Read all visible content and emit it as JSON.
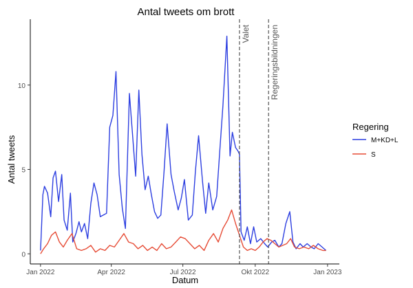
{
  "chart_data": {
    "type": "line",
    "title": "Antal tweets om brott",
    "xlabel": "Datum",
    "ylabel": "Antal tweets",
    "x_tick_labels": [
      "Jan 2022",
      "Apr 2022",
      "Jul 2022",
      "Okt 2022",
      "Jan 2023"
    ],
    "x_tick_dates": [
      "2022-01-01",
      "2022-04-01",
      "2022-07-01",
      "2022-10-01",
      "2023-01-01"
    ],
    "y_ticks": [
      0,
      5,
      10
    ],
    "xlim": [
      "2021-12-19",
      "2023-01-16"
    ],
    "ylim": [
      -0.6,
      13.9
    ],
    "grid": false,
    "legend": {
      "title": "Regering",
      "placement": "right"
    },
    "vlines": [
      {
        "x": "2022-09-11",
        "label": "Valet"
      },
      {
        "x": "2022-10-18",
        "label": "Regeringsbildningen"
      }
    ],
    "series": [
      {
        "name": "M+KD+L",
        "color": "#2c3ee0",
        "x": [
          "2022-01-01",
          "2022-01-04",
          "2022-01-06",
          "2022-01-10",
          "2022-01-14",
          "2022-01-17",
          "2022-01-20",
          "2022-01-24",
          "2022-01-28",
          "2022-01-31",
          "2022-02-04",
          "2022-02-08",
          "2022-02-11",
          "2022-02-15",
          "2022-02-19",
          "2022-02-22",
          "2022-02-26",
          "2022-03-02",
          "2022-03-06",
          "2022-03-10",
          "2022-03-14",
          "2022-03-18",
          "2022-03-22",
          "2022-03-26",
          "2022-03-30",
          "2022-04-03",
          "2022-04-07",
          "2022-04-11",
          "2022-04-15",
          "2022-04-19",
          "2022-04-24",
          "2022-04-28",
          "2022-05-02",
          "2022-05-06",
          "2022-05-10",
          "2022-05-14",
          "2022-05-18",
          "2022-05-22",
          "2022-05-26",
          "2022-05-30",
          "2022-06-03",
          "2022-06-07",
          "2022-06-11",
          "2022-06-16",
          "2022-06-20",
          "2022-06-25",
          "2022-06-29",
          "2022-07-03",
          "2022-07-08",
          "2022-07-13",
          "2022-07-17",
          "2022-07-21",
          "2022-07-26",
          "2022-07-30",
          "2022-08-03",
          "2022-08-08",
          "2022-08-13",
          "2022-08-17",
          "2022-08-21",
          "2022-08-26",
          "2022-08-30",
          "2022-09-02",
          "2022-09-06",
          "2022-09-09",
          "2022-09-11",
          "2022-09-13",
          "2022-09-17",
          "2022-09-21",
          "2022-09-25",
          "2022-09-29",
          "2022-10-03",
          "2022-10-08",
          "2022-10-13",
          "2022-10-17",
          "2022-10-22",
          "2022-10-26",
          "2022-10-31",
          "2022-11-04",
          "2022-11-09",
          "2022-11-14",
          "2022-11-18",
          "2022-11-22",
          "2022-11-27",
          "2022-12-01",
          "2022-12-06",
          "2022-12-11",
          "2022-12-15",
          "2022-12-20",
          "2022-12-25",
          "2022-12-30"
        ],
        "y": [
          0.2,
          3.5,
          4.0,
          3.6,
          2.2,
          4.5,
          4.9,
          3.1,
          4.7,
          2.0,
          1.4,
          3.6,
          0.7,
          1.2,
          1.9,
          1.3,
          1.8,
          0.9,
          3.0,
          4.2,
          3.5,
          2.2,
          2.3,
          2.4,
          7.5,
          8.2,
          10.8,
          4.7,
          2.7,
          1.5,
          9.5,
          7.1,
          4.6,
          9.7,
          5.9,
          3.8,
          4.6,
          3.5,
          2.5,
          2.1,
          2.3,
          4.8,
          7.7,
          4.7,
          3.7,
          2.6,
          3.3,
          4.4,
          2.0,
          2.3,
          4.9,
          7.0,
          4.3,
          2.4,
          4.2,
          2.6,
          3.4,
          6.1,
          8.8,
          12.9,
          5.8,
          7.2,
          6.3,
          6.1,
          5.9,
          1.3,
          0.8,
          1.6,
          0.6,
          1.6,
          0.7,
          0.9,
          0.6,
          0.4,
          0.7,
          0.8,
          0.4,
          0.6,
          1.8,
          2.5,
          0.7,
          0.3,
          0.6,
          0.4,
          0.6,
          0.4,
          0.3,
          0.6,
          0.4,
          0.2
        ]
      },
      {
        "name": "S",
        "color": "#e64b35",
        "x": [
          "2022-01-01",
          "2022-01-05",
          "2022-01-10",
          "2022-01-15",
          "2022-01-20",
          "2022-01-25",
          "2022-01-30",
          "2022-02-04",
          "2022-02-10",
          "2022-02-16",
          "2022-02-22",
          "2022-02-28",
          "2022-03-06",
          "2022-03-12",
          "2022-03-18",
          "2022-03-24",
          "2022-03-30",
          "2022-04-05",
          "2022-04-11",
          "2022-04-17",
          "2022-04-23",
          "2022-04-29",
          "2022-05-05",
          "2022-05-11",
          "2022-05-17",
          "2022-05-23",
          "2022-05-29",
          "2022-06-04",
          "2022-06-10",
          "2022-06-16",
          "2022-06-22",
          "2022-06-28",
          "2022-07-04",
          "2022-07-10",
          "2022-07-16",
          "2022-07-22",
          "2022-07-28",
          "2022-08-03",
          "2022-08-09",
          "2022-08-15",
          "2022-08-21",
          "2022-08-27",
          "2022-09-01",
          "2022-09-06",
          "2022-09-11",
          "2022-09-16",
          "2022-09-21",
          "2022-09-26",
          "2022-10-01",
          "2022-10-06",
          "2022-10-11",
          "2022-10-16",
          "2022-10-21",
          "2022-10-26",
          "2022-10-31",
          "2022-11-05",
          "2022-11-10",
          "2022-11-15",
          "2022-11-20",
          "2022-11-26",
          "2022-12-02",
          "2022-12-08",
          "2022-12-14",
          "2022-12-20",
          "2022-12-26",
          "2022-12-30"
        ],
        "y": [
          0.0,
          0.3,
          0.6,
          1.1,
          1.3,
          0.7,
          0.4,
          0.8,
          1.2,
          0.3,
          0.2,
          0.3,
          0.5,
          0.1,
          0.3,
          0.2,
          0.5,
          0.4,
          0.8,
          1.2,
          0.7,
          0.6,
          0.3,
          0.5,
          0.2,
          0.4,
          0.2,
          0.6,
          0.3,
          0.4,
          0.7,
          1.0,
          0.9,
          0.6,
          0.3,
          0.5,
          0.2,
          0.8,
          1.2,
          0.7,
          1.5,
          2.0,
          2.6,
          1.8,
          1.1,
          0.4,
          0.2,
          0.3,
          0.2,
          0.4,
          0.7,
          0.9,
          0.8,
          0.6,
          0.4,
          0.5,
          0.6,
          0.9,
          0.4,
          0.3,
          0.4,
          0.3,
          0.5,
          0.3,
          0.2,
          0.2
        ]
      }
    ]
  }
}
